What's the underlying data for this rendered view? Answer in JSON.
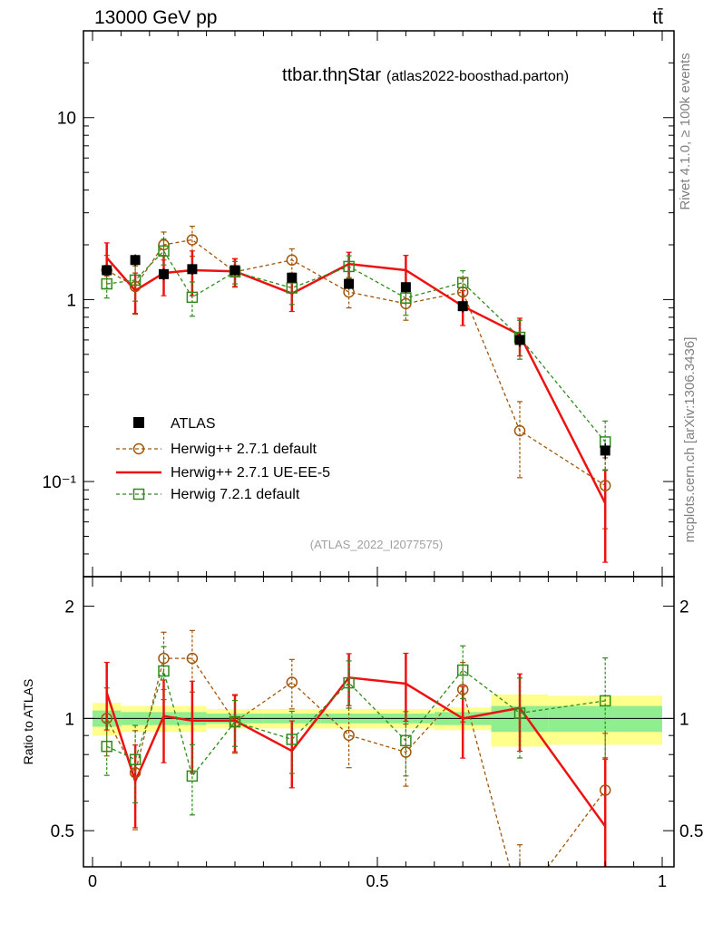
{
  "header": {
    "energy_label": "13000 GeV pp",
    "process_label": "tt̄"
  },
  "side_labels": {
    "rivet": "Rivet 4.1.0, ≥ 100k events",
    "mcplots": "mcplots.cern.ch [arXiv:1306.3436]"
  },
  "chart_data": {
    "type": "line",
    "title": "ttbar.thηStar",
    "subtitle": "(atlas2022-boosthad.parton)",
    "watermark": "(ATLAS_2022_I2077575)",
    "xlim": [
      0,
      1
    ],
    "ylim_main": [
      0.03,
      30
    ],
    "ylim_ratio": [
      0.4,
      2.4
    ],
    "yscale": "log",
    "xlabel": "",
    "ylabel_ratio": "Ratio to ATLAS",
    "x_ticks": [
      0,
      0.5,
      1
    ],
    "x_tick_labels": [
      "0",
      "0.5",
      "1"
    ],
    "y_main_ticks": [
      0.1,
      1,
      10
    ],
    "y_main_tick_labels": [
      "10⁻¹",
      "1",
      "10"
    ],
    "y_ratio_ticks": [
      0.5,
      1,
      2
    ],
    "y_ratio_tick_labels": [
      "0.5",
      "1",
      "2"
    ],
    "legend_position": "bottom-left",
    "bins": [
      [
        0,
        0.05
      ],
      [
        0.05,
        0.1
      ],
      [
        0.1,
        0.15
      ],
      [
        0.15,
        0.2
      ],
      [
        0.2,
        0.3
      ],
      [
        0.3,
        0.4
      ],
      [
        0.4,
        0.5
      ],
      [
        0.5,
        0.6
      ],
      [
        0.6,
        0.7
      ],
      [
        0.7,
        0.8
      ],
      [
        0.8,
        1.0
      ]
    ],
    "x": [
      0.025,
      0.075,
      0.125,
      0.175,
      0.25,
      0.35,
      0.45,
      0.55,
      0.65,
      0.75,
      0.9
    ],
    "data": {
      "name": "ATLAS",
      "values": [
        1.45,
        1.65,
        1.38,
        1.47,
        1.45,
        1.32,
        1.22,
        1.17,
        0.92,
        0.6,
        0.148
      ],
      "errors": [
        0.1,
        0.12,
        0.1,
        0.1,
        0.08,
        0.08,
        0.08,
        0.08,
        0.07,
        0.05,
        0.015
      ],
      "band_stat": [
        0.05,
        0.04,
        0.04,
        0.04,
        0.03,
        0.03,
        0.03,
        0.03,
        0.04,
        0.08,
        0.08
      ],
      "band_total": [
        0.1,
        0.08,
        0.08,
        0.08,
        0.06,
        0.06,
        0.06,
        0.06,
        0.07,
        0.16,
        0.15
      ]
    },
    "series": [
      {
        "name": "Herwig++ 2.7.1 default",
        "color": "#a0560a",
        "style": "dashed-circle",
        "values": [
          1.45,
          1.18,
          2.0,
          2.13,
          1.42,
          1.65,
          1.1,
          0.95,
          1.1,
          0.19,
          0.095
        ],
        "errors": [
          0.3,
          0.35,
          0.35,
          0.4,
          0.25,
          0.25,
          0.2,
          0.18,
          0.2,
          0.085,
          0.04
        ]
      },
      {
        "name": "Herwig++ 2.7.1 UE-EE-5",
        "color": "#ee1111",
        "style": "solid",
        "values": [
          1.7,
          1.12,
          1.4,
          1.45,
          1.43,
          1.08,
          1.57,
          1.45,
          0.92,
          0.64,
          0.076
        ],
        "errors": [
          0.35,
          0.28,
          0.35,
          0.4,
          0.25,
          0.22,
          0.25,
          0.3,
          0.2,
          0.15,
          0.04
        ]
      },
      {
        "name": "Herwig 7.2.1 default",
        "color": "#2e8b1a",
        "style": "dashed-square",
        "values": [
          1.22,
          1.28,
          1.85,
          1.03,
          1.42,
          1.16,
          1.52,
          1.02,
          1.24,
          0.62,
          0.165
        ],
        "errors": [
          0.2,
          0.3,
          0.3,
          0.22,
          0.2,
          0.22,
          0.22,
          0.2,
          0.2,
          0.15,
          0.05
        ]
      }
    ]
  }
}
